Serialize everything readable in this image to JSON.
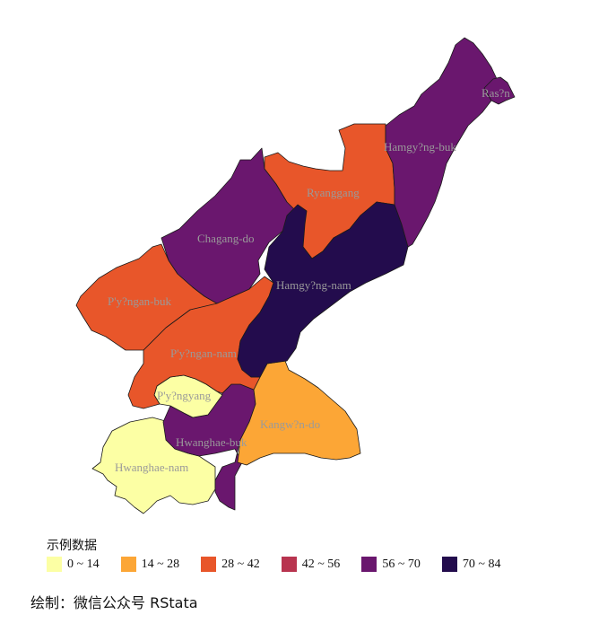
{
  "legend": {
    "title": "示例数据",
    "items": [
      {
        "label": "0 ~ 14",
        "color": "#FCFFA4"
      },
      {
        "label": "14 ~ 28",
        "color": "#FCA636"
      },
      {
        "label": "28 ~ 42",
        "color": "#E8562A"
      },
      {
        "label": "42 ~ 56",
        "color": "#B8344F"
      },
      {
        "label": "56 ~ 70",
        "color": "#6A176E"
      },
      {
        "label": "70 ~ 84",
        "color": "#230C4D"
      }
    ]
  },
  "provinces": [
    {
      "name": "Ras?n",
      "color": "#6A176E"
    },
    {
      "name": "Hamgy?ng-buk",
      "color": "#6A176E"
    },
    {
      "name": "Ryanggang",
      "color": "#E8562A"
    },
    {
      "name": "Chagang-do",
      "color": "#6A176E"
    },
    {
      "name": "Hamgy?ng-nam",
      "color": "#230C4D"
    },
    {
      "name": "P'y?ngan-buk",
      "color": "#E8562A"
    },
    {
      "name": "P'y?ngan-nam",
      "color": "#E8562A"
    },
    {
      "name": "P'y?ngyang",
      "color": "#FCFFA4"
    },
    {
      "name": "Kangw?n-do",
      "color": "#FCA636"
    },
    {
      "name": "Hwanghae-buk",
      "color": "#6A176E"
    },
    {
      "name": "Hwanghae-nam",
      "color": "#FCFFA4"
    }
  ],
  "caption": "绘制：微信公众号 RStata"
}
